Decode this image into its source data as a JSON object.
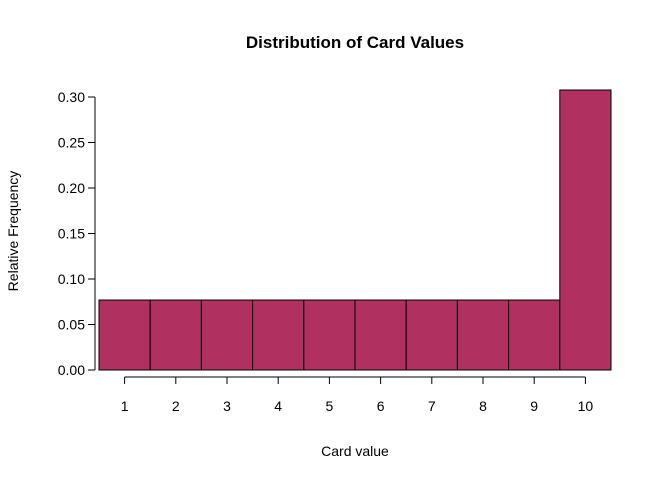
{
  "chart_data": {
    "type": "bar",
    "title": "Distribution of Card Values",
    "xlabel": "Card value",
    "ylabel": "Relative Frequency",
    "categories": [
      "1",
      "2",
      "3",
      "4",
      "5",
      "6",
      "7",
      "8",
      "9",
      "10"
    ],
    "values": [
      0.0769,
      0.0769,
      0.0769,
      0.0769,
      0.0769,
      0.0769,
      0.0769,
      0.0769,
      0.0769,
      0.3077
    ],
    "ylim": [
      0,
      0.3
    ],
    "yticks": [
      "0.00",
      "0.05",
      "0.10",
      "0.15",
      "0.20",
      "0.25",
      "0.30"
    ],
    "bar_color": "#B03060",
    "grid": false
  }
}
